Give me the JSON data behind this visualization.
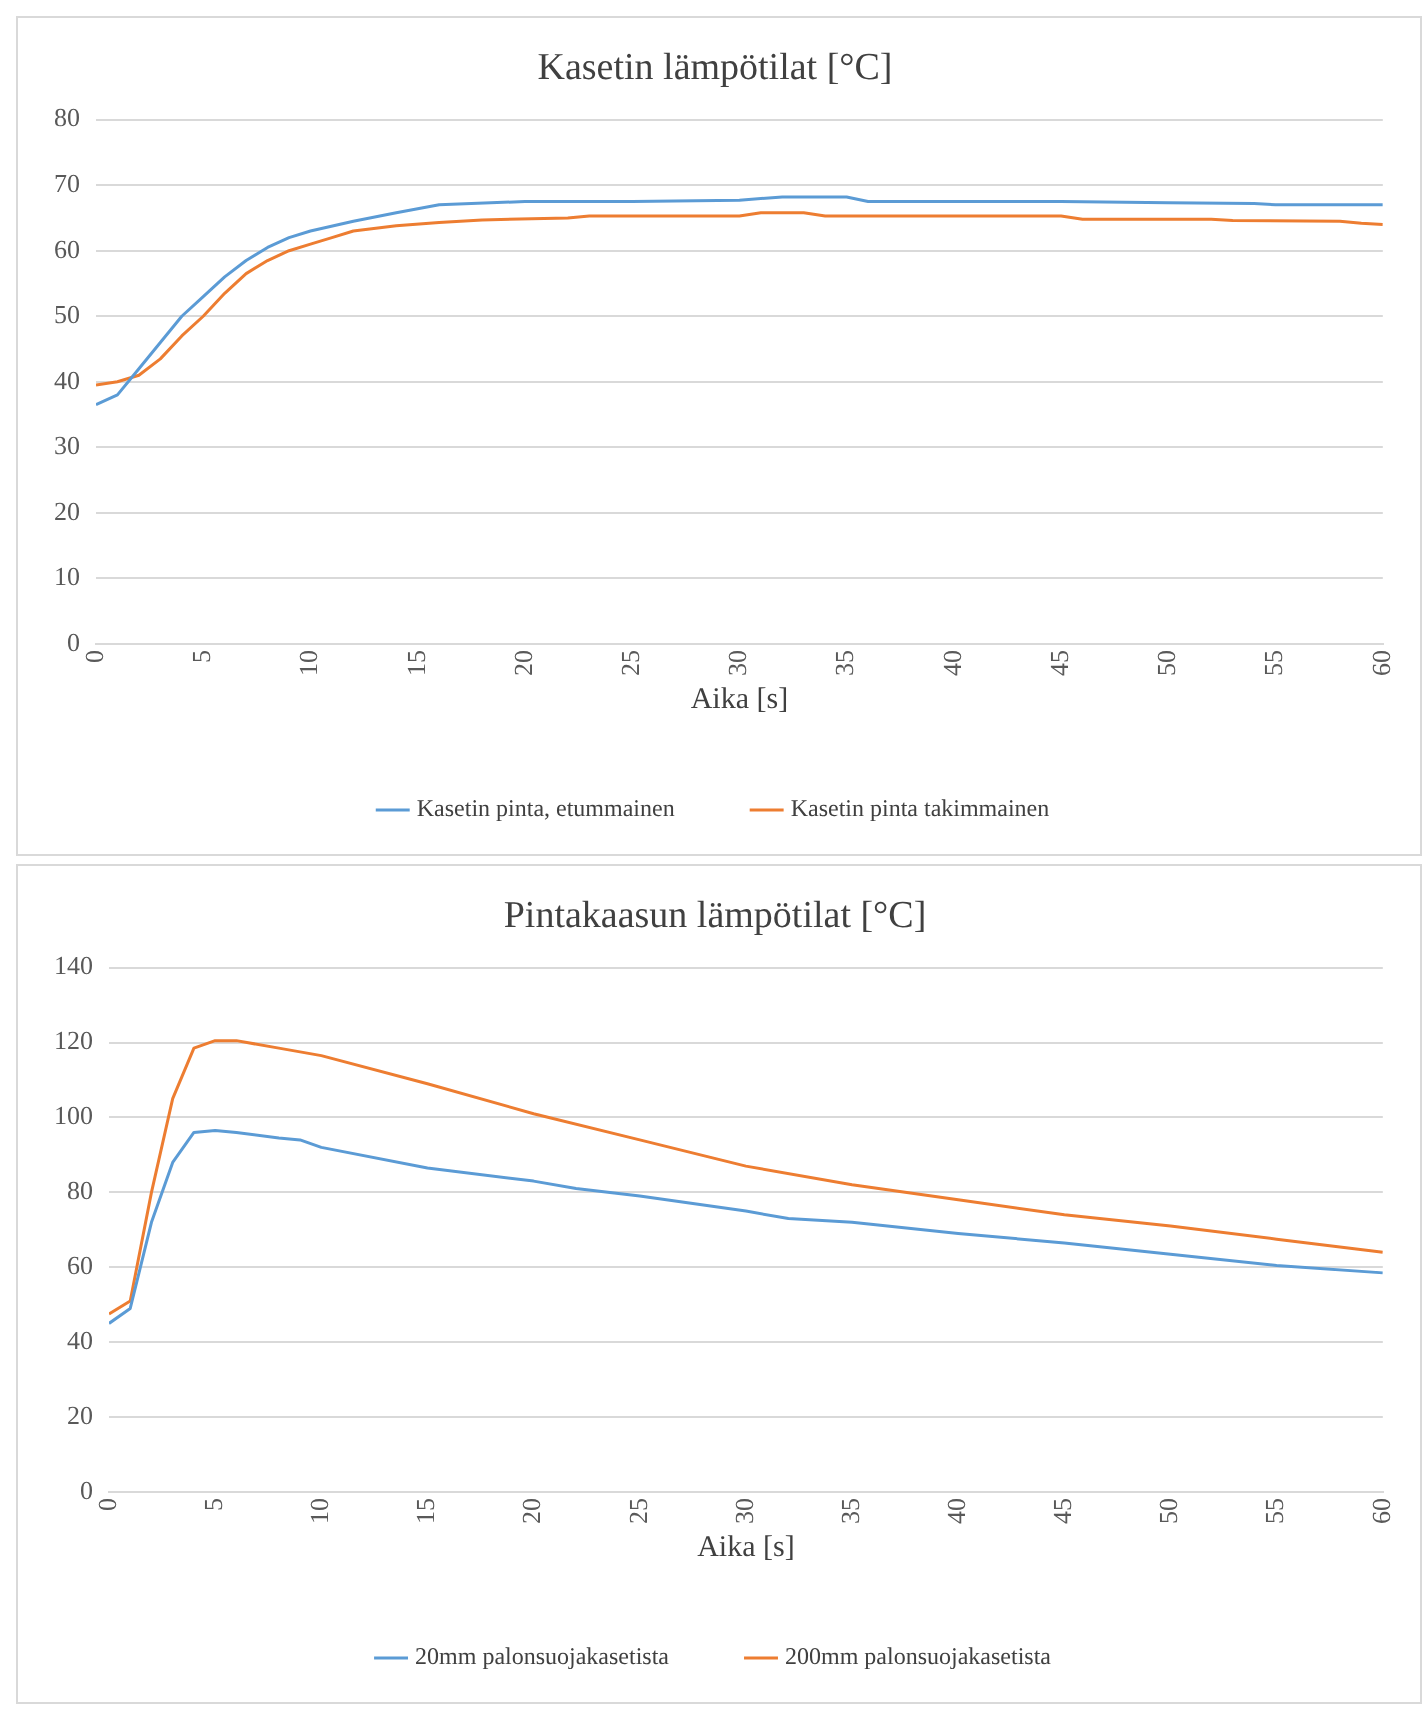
{
  "chart_data": [
    {
      "type": "line",
      "title": "Kasetin lämpötilat [°C]",
      "xlabel": "Aika [s]",
      "xlim": [
        0,
        60
      ],
      "xticks": [
        0,
        5,
        10,
        15,
        20,
        25,
        30,
        35,
        40,
        45,
        50,
        55,
        60
      ],
      "ylim": [
        0,
        80
      ],
      "yticks": [
        0,
        10,
        20,
        30,
        40,
        50,
        60,
        70,
        80
      ],
      "grid": "y",
      "legend": "bottom",
      "series": [
        {
          "name": "Kasetin pinta, etummainen",
          "color": "#5b9bd5",
          "x": [
            0,
            1,
            2,
            3,
            4,
            5,
            6,
            7,
            8,
            9,
            10,
            12,
            14,
            16,
            20,
            25,
            30,
            32,
            35,
            36,
            45,
            50,
            54,
            55,
            60
          ],
          "values": [
            36.5,
            38,
            42,
            46,
            50,
            53,
            56,
            58.5,
            60.5,
            62,
            63,
            64.5,
            65.8,
            67,
            67.5,
            67.5,
            67.7,
            68.2,
            68.2,
            67.5,
            67.5,
            67.3,
            67.2,
            67,
            67
          ]
        },
        {
          "name": "Kasetin pinta takimmainen",
          "color": "#ed7d31",
          "x": [
            0,
            1,
            2,
            3,
            4,
            5,
            6,
            7,
            8,
            9,
            10,
            11,
            12,
            14,
            16,
            18,
            22,
            23,
            30,
            31,
            33,
            34,
            45,
            46,
            52,
            53,
            58,
            59,
            60
          ],
          "values": [
            39.5,
            40,
            41,
            43.5,
            47,
            50,
            53.5,
            56.5,
            58.5,
            60,
            61,
            62,
            63,
            63.8,
            64.3,
            64.7,
            65,
            65.3,
            65.3,
            65.8,
            65.8,
            65.3,
            65.3,
            64.8,
            64.8,
            64.6,
            64.5,
            64.2,
            64
          ]
        }
      ]
    },
    {
      "type": "line",
      "title": "Pintakaasun lämpötilat [°C]",
      "xlabel": "Aika [s]",
      "xlim": [
        0,
        60
      ],
      "xticks": [
        0,
        5,
        10,
        15,
        20,
        25,
        30,
        35,
        40,
        45,
        50,
        55,
        60
      ],
      "ylim": [
        0,
        140
      ],
      "yticks": [
        0,
        20,
        40,
        60,
        80,
        100,
        120,
        140
      ],
      "grid": "y",
      "legend": "bottom",
      "series": [
        {
          "name": "20mm palonsuojakasetista",
          "color": "#5b9bd5",
          "x": [
            0,
            1,
            2,
            3,
            4,
            5,
            6,
            8,
            9,
            10,
            15,
            20,
            22,
            25,
            30,
            32,
            35,
            40,
            45,
            50,
            55,
            60
          ],
          "values": [
            45,
            49,
            72,
            88,
            96,
            96.5,
            96,
            94.5,
            94,
            92,
            86.5,
            83,
            81,
            79,
            75,
            73,
            72,
            69,
            66.5,
            63.5,
            60.5,
            58.5
          ]
        },
        {
          "name": "200mm palonsuojakasetista",
          "color": "#ed7d31",
          "x": [
            0,
            1,
            2,
            3,
            4,
            5,
            6,
            8,
            10,
            15,
            20,
            25,
            30,
            35,
            40,
            45,
            50,
            55,
            60
          ],
          "values": [
            47.5,
            51,
            80,
            105,
            118.5,
            120.5,
            120.5,
            118.5,
            116.5,
            109,
            101,
            94,
            87,
            82,
            78,
            74,
            71,
            67.5,
            64
          ]
        }
      ]
    }
  ]
}
